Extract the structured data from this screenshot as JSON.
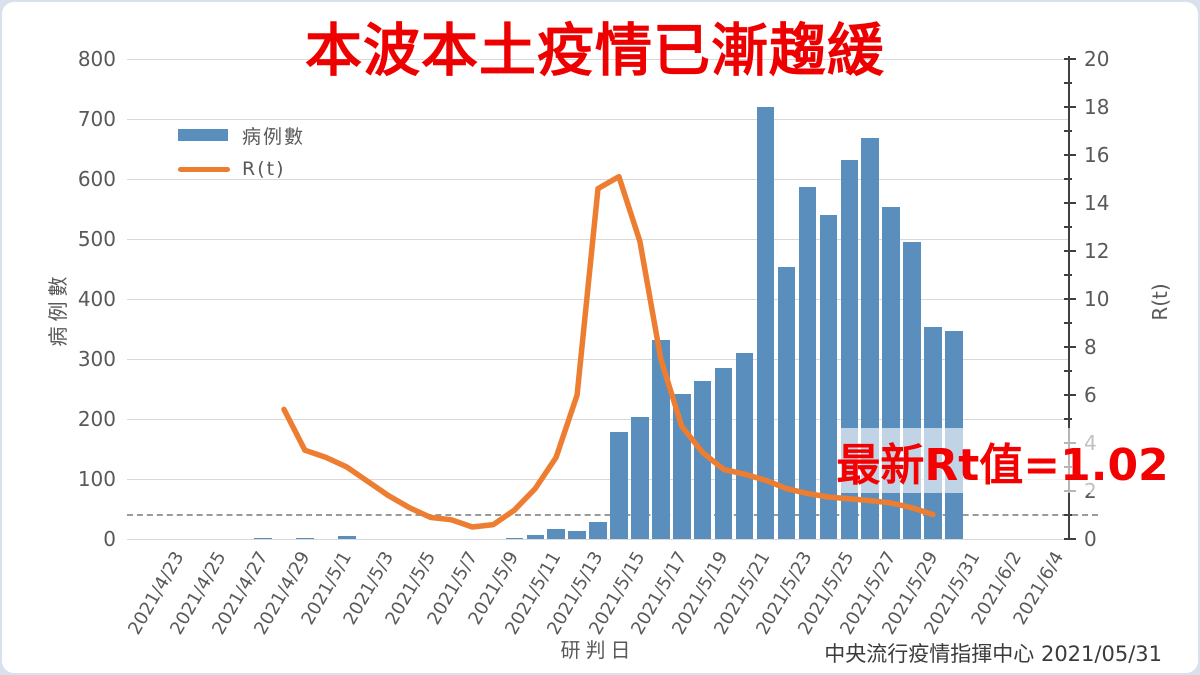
{
  "title": "本波本土疫情已漸趨緩",
  "annotation": {
    "text": "最新Rt值=1.02"
  },
  "source": "中央流行疫情指揮中心 2021/05/31",
  "legend": [
    {
      "label": "病例數",
      "type": "bar"
    },
    {
      "label": "R(t)",
      "type": "line"
    }
  ],
  "axes": {
    "x": {
      "title": "研判日",
      "tick_labels": [
        "2021/4/23",
        "2021/4/25",
        "2021/4/27",
        "2021/4/29",
        "2021/5/1",
        "2021/5/3",
        "2021/5/5",
        "2021/5/7",
        "2021/5/9",
        "2021/5/11",
        "2021/5/13",
        "2021/5/15",
        "2021/5/17",
        "2021/5/19",
        "2021/5/21",
        "2021/5/23",
        "2021/5/25",
        "2021/5/27",
        "2021/5/29",
        "2021/5/31",
        "2021/6/2",
        "2021/6/4"
      ]
    },
    "y_left": {
      "title": "病例數",
      "min": 0,
      "max": 800,
      "tick_step": 100,
      "tick_labels": [
        "0",
        "100",
        "200",
        "300",
        "400",
        "500",
        "600",
        "700",
        "800"
      ]
    },
    "y_right": {
      "title": "R(t)",
      "min": 0,
      "max": 20,
      "tick_step": 2,
      "tick_labels": [
        "0",
        "2",
        "4",
        "6",
        "8",
        "10",
        "12",
        "14",
        "16",
        "18",
        "20"
      ]
    }
  },
  "chart_data": {
    "type": "combo",
    "x_range": {
      "first_slot": "2021/4/22",
      "last_slot": "2021/6/5"
    },
    "grid": "horizontal",
    "legend_position": "upper-left-inside",
    "reference_line": {
      "axis": "right",
      "value": 1,
      "style": "dashed"
    },
    "series": [
      {
        "name": "病例數",
        "type": "bar",
        "axis": "left",
        "color": "#5a8ebc",
        "points": [
          [
            "2021/4/28",
            2
          ],
          [
            "2021/4/30",
            2
          ],
          [
            "2021/5/2",
            5
          ],
          [
            "2021/5/10",
            1
          ],
          [
            "2021/5/11",
            7
          ],
          [
            "2021/5/12",
            16
          ],
          [
            "2021/5/13",
            13
          ],
          [
            "2021/5/14",
            29
          ],
          [
            "2021/5/15",
            178
          ],
          [
            "2021/5/16",
            203
          ],
          [
            "2021/5/17",
            332
          ],
          [
            "2021/5/18",
            242
          ],
          [
            "2021/5/19",
            263
          ],
          [
            "2021/5/20",
            285
          ],
          [
            "2021/5/21",
            310
          ],
          [
            "2021/5/22",
            720
          ],
          [
            "2021/5/23",
            453
          ],
          [
            "2021/5/24",
            587
          ],
          [
            "2021/5/25",
            540
          ],
          [
            "2021/5/26",
            631
          ],
          [
            "2021/5/27",
            668
          ],
          [
            "2021/5/28",
            553
          ],
          [
            "2021/5/29",
            495
          ],
          [
            "2021/5/30",
            353
          ],
          [
            "2021/5/31",
            347
          ]
        ]
      },
      {
        "name": "R(t)",
        "type": "line",
        "axis": "right",
        "color": "#ed7d31",
        "points": [
          [
            "2021/4/29",
            5.4
          ],
          [
            "2021/4/30",
            3.7
          ],
          [
            "2021/5/1",
            3.4
          ],
          [
            "2021/5/2",
            3.0
          ],
          [
            "2021/5/3",
            2.4
          ],
          [
            "2021/5/4",
            1.8
          ],
          [
            "2021/5/5",
            1.3
          ],
          [
            "2021/5/6",
            0.9
          ],
          [
            "2021/5/7",
            0.8
          ],
          [
            "2021/5/8",
            0.5
          ],
          [
            "2021/5/9",
            0.6
          ],
          [
            "2021/5/10",
            1.2
          ],
          [
            "2021/5/11",
            2.1
          ],
          [
            "2021/5/12",
            3.4
          ],
          [
            "2021/5/13",
            6.0
          ],
          [
            "2021/5/14",
            14.6
          ],
          [
            "2021/5/15",
            15.1
          ],
          [
            "2021/5/16",
            12.4
          ],
          [
            "2021/5/17",
            7.5
          ],
          [
            "2021/5/18",
            4.7
          ],
          [
            "2021/5/19",
            3.6
          ],
          [
            "2021/5/20",
            2.9
          ],
          [
            "2021/5/21",
            2.7
          ],
          [
            "2021/5/22",
            2.45
          ],
          [
            "2021/5/23",
            2.1
          ],
          [
            "2021/5/24",
            1.9
          ],
          [
            "2021/5/25",
            1.75
          ],
          [
            "2021/5/26",
            1.68
          ],
          [
            "2021/5/27",
            1.6
          ],
          [
            "2021/5/28",
            1.5
          ],
          [
            "2021/5/29",
            1.3
          ],
          [
            "2021/5/30",
            1.02
          ]
        ]
      }
    ]
  },
  "colors": {
    "bar": "#5a8ebc",
    "line": "#ed7d31",
    "title_red": "#ee0000",
    "annotation_red": "#f40000",
    "annotation_bg": "rgba(255,255,255,0.62)",
    "axis_text": "#595959",
    "source_text": "#3b3b3b",
    "gridline": "#d9d9d9",
    "dashed_line": "#9a9a9a",
    "spine": "#404040",
    "frame": "#d9e2ec"
  }
}
